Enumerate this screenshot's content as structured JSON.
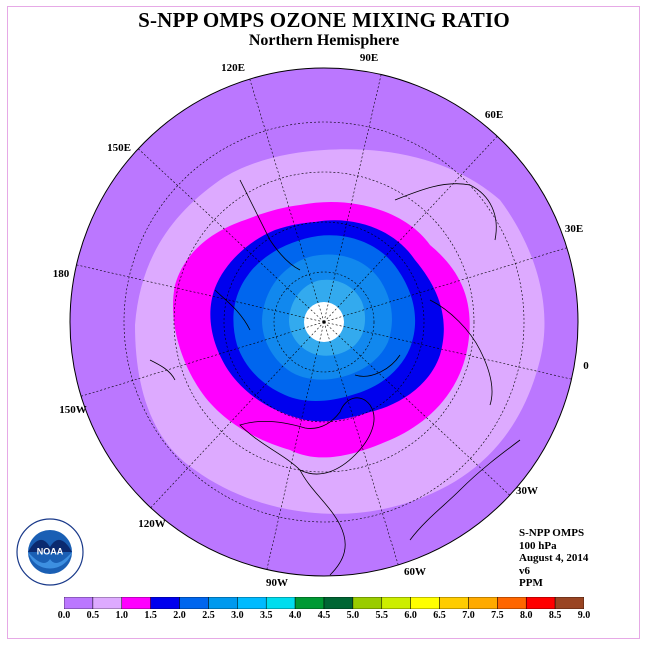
{
  "header": {
    "title": "S-NPP OMPS OZONE MIXING RATIO",
    "subtitle": "Northern Hemisphere"
  },
  "longitude_labels": [
    "90E",
    "60E",
    "30E",
    "0",
    "30W",
    "60W",
    "90W",
    "120W",
    "150W",
    "180",
    "150E",
    "120E"
  ],
  "info": {
    "instrument": "S-NPP OMPS",
    "level": "100 hPa",
    "date": "August 4, 2014",
    "version": "v6",
    "units": "PPM"
  },
  "logo": {
    "name": "NOAA",
    "ring_text": "NATIONAL OCEANIC AND ATMOSPHERIC ADMINISTRATION · U.S. DEPARTMENT OF COMMERCE"
  },
  "legend": {
    "ticks": [
      "0.0",
      "0.5",
      "1.0",
      "1.5",
      "2.0",
      "2.5",
      "3.0",
      "3.5",
      "4.0",
      "4.5",
      "5.0",
      "5.5",
      "6.0",
      "6.5",
      "7.0",
      "7.5",
      "8.0",
      "8.5",
      "9.0"
    ],
    "colors": [
      "#bb77ff",
      "#ddaaff",
      "#ff00ff",
      "#0000ee",
      "#0066ee",
      "#0099ee",
      "#00bbff",
      "#00ddee",
      "#009933",
      "#006633",
      "#99cc00",
      "#ccee00",
      "#ffff00",
      "#ffcc00",
      "#ffaa00",
      "#ff6600",
      "#ff0000",
      "#994422"
    ]
  },
  "map_colors": {
    "outer": "#bb77ff",
    "band_0_5": "#ddaaff",
    "band_1_0": "#ff00ff",
    "band_1_5": "#0000ee",
    "band_2_0": "#0066ee",
    "band_2_5": "#1188ee",
    "band_3_0": "#33aaee",
    "missing": "#ffffff"
  }
}
